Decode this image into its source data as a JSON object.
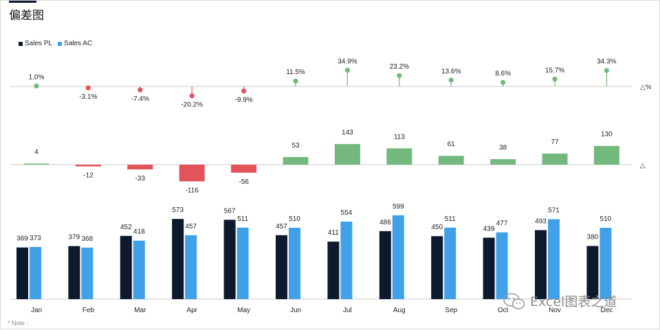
{
  "title": "偏差图",
  "note": "* Note :",
  "watermark": "Excel图表之道",
  "colors": {
    "pl": "#0d1a2e",
    "ac": "#41a1e8",
    "positive": "#73b87d",
    "negative": "#e3535a",
    "axis": "#c8c8c8"
  },
  "legend": [
    {
      "label": "Sales PL",
      "color": "#0d1a2e"
    },
    {
      "label": "Sales AC",
      "color": "#41a1e8"
    }
  ],
  "chart_data": [
    {
      "type": "scatter",
      "title": "",
      "x": [
        "Jan",
        "Feb",
        "Mar",
        "Apr",
        "May",
        "Jun",
        "Jul",
        "Aug",
        "Sep",
        "Oct",
        "Nov",
        "Dec"
      ],
      "values": [
        1.0,
        -3.1,
        -7.4,
        -20.2,
        -9.9,
        11.5,
        34.9,
        23.2,
        13.6,
        8.6,
        15.7,
        34.3
      ],
      "labels": [
        "1.0%",
        "-3.1%",
        "-7.4%",
        "-20.2%",
        "-9.9%",
        "11.5%",
        "34.9%",
        "23.2%",
        "13.6%",
        "8.6%",
        "15.7%",
        "34.3%"
      ],
      "axis_marker": "△%"
    },
    {
      "type": "bar",
      "title": "",
      "categories": [
        "Jan",
        "Feb",
        "Mar",
        "Apr",
        "May",
        "Jun",
        "Jul",
        "Aug",
        "Sep",
        "Oct",
        "Nov",
        "Dec"
      ],
      "values": [
        4,
        -12,
        -33,
        -116,
        -56,
        53,
        143,
        113,
        61,
        38,
        77,
        130
      ],
      "axis_marker": "△"
    },
    {
      "type": "bar",
      "title": "",
      "categories": [
        "Jan",
        "Feb",
        "Mar",
        "Apr",
        "May",
        "Jun",
        "Jul",
        "Aug",
        "Sep",
        "Oct",
        "Nov",
        "Dec"
      ],
      "series": [
        {
          "name": "Sales PL",
          "values": [
            369,
            379,
            452,
            573,
            567,
            457,
            411,
            486,
            450,
            439,
            493,
            380
          ]
        },
        {
          "name": "Sales AC",
          "values": [
            373,
            368,
            418,
            457,
            511,
            510,
            554,
            599,
            511,
            477,
            571,
            510
          ]
        }
      ],
      "ylim": [
        0,
        600
      ]
    }
  ]
}
